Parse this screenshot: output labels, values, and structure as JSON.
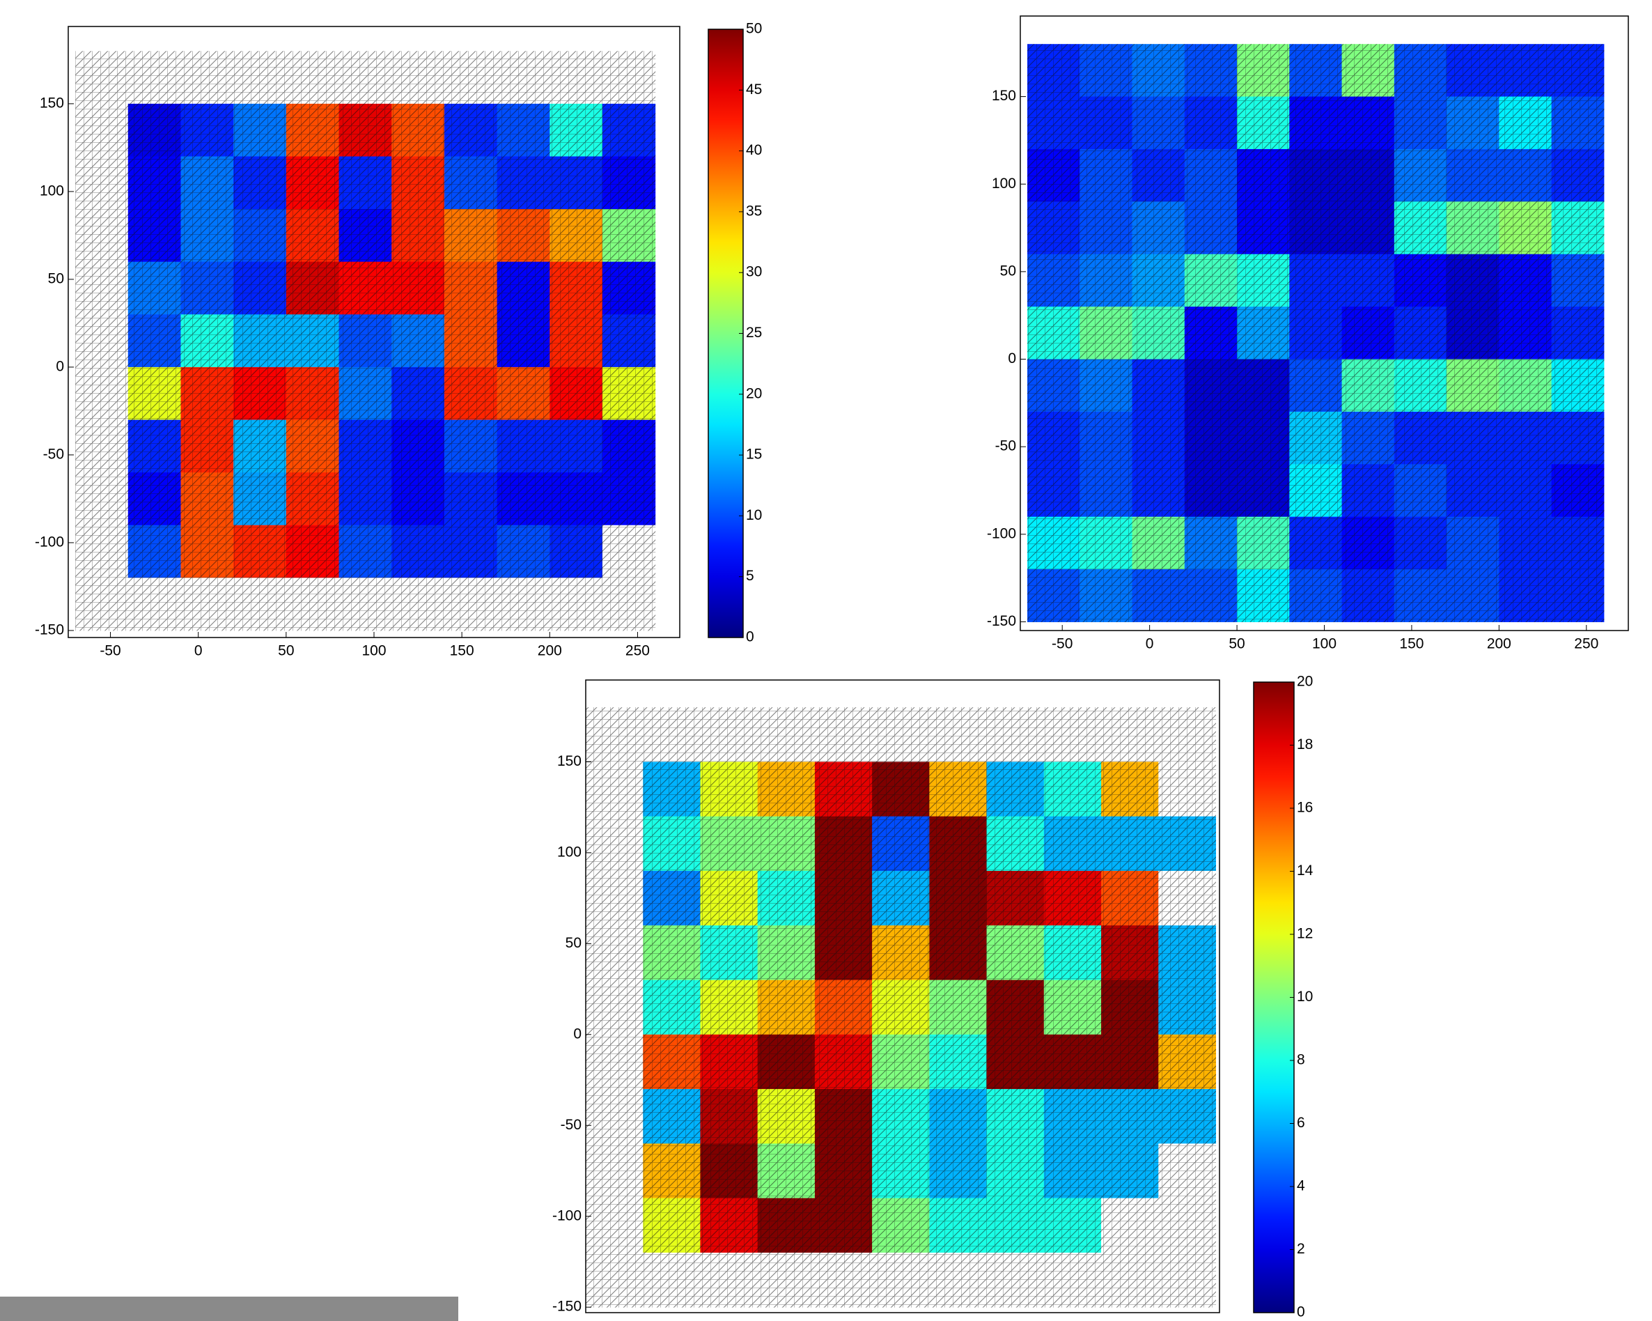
{
  "chart_data": [
    {
      "type": "heatmap",
      "x": [
        -55,
        -25,
        5,
        35,
        65,
        95,
        125,
        155,
        185,
        215,
        245
      ],
      "y": [
        165,
        135,
        105,
        75,
        45,
        15,
        -15,
        -45,
        -75,
        -105,
        -135
      ],
      "values": [
        [
          null,
          null,
          null,
          null,
          null,
          null,
          null,
          null,
          null,
          null,
          null
        ],
        [
          null,
          5,
          8,
          12,
          40,
          45,
          40,
          8,
          10,
          20,
          8
        ],
        [
          null,
          6,
          12,
          8,
          44,
          8,
          42,
          10,
          8,
          8,
          6
        ],
        [
          null,
          6,
          12,
          10,
          42,
          6,
          42,
          38,
          40,
          36,
          25
        ],
        [
          null,
          12,
          10,
          8,
          46,
          44,
          44,
          40,
          6,
          42,
          6
        ],
        [
          null,
          10,
          20,
          15,
          15,
          10,
          12,
          40,
          6,
          42,
          8
        ],
        [
          null,
          30,
          42,
          44,
          42,
          12,
          8,
          42,
          40,
          44,
          30
        ],
        [
          null,
          8,
          42,
          15,
          40,
          8,
          6,
          10,
          8,
          8,
          6
        ],
        [
          null,
          6,
          40,
          14,
          42,
          8,
          6,
          8,
          6,
          6,
          6
        ],
        [
          null,
          10,
          40,
          42,
          44,
          10,
          8,
          8,
          10,
          8,
          null
        ],
        [
          null,
          null,
          null,
          null,
          null,
          null,
          null,
          null,
          null,
          null,
          null
        ]
      ],
      "xlim": [
        -74,
        274
      ],
      "ylim": [
        -154,
        194
      ],
      "xticks": [
        -50,
        0,
        50,
        100,
        150,
        200,
        250
      ],
      "yticks": [
        -150,
        -100,
        -50,
        0,
        50,
        100,
        150
      ],
      "clim": [
        0,
        50
      ],
      "colorbar_ticks": [
        0,
        5,
        10,
        15,
        20,
        25,
        30,
        35,
        40,
        45,
        50
      ]
    },
    {
      "type": "heatmap",
      "x": [
        -55,
        -25,
        5,
        35,
        65,
        95,
        125,
        155,
        185,
        215,
        245
      ],
      "y": [
        165,
        135,
        105,
        75,
        45,
        15,
        -15,
        -45,
        -75,
        -105,
        -135
      ],
      "values": [
        [
          8,
          10,
          12,
          10,
          25,
          10,
          25,
          10,
          8,
          8,
          8
        ],
        [
          8,
          8,
          10,
          8,
          20,
          6,
          6,
          10,
          12,
          18,
          10
        ],
        [
          6,
          10,
          8,
          10,
          6,
          4,
          4,
          12,
          10,
          10,
          8
        ],
        [
          8,
          10,
          12,
          10,
          6,
          4,
          4,
          20,
          24,
          26,
          20
        ],
        [
          10,
          12,
          14,
          22,
          20,
          8,
          8,
          6,
          4,
          6,
          10
        ],
        [
          20,
          24,
          22,
          6,
          14,
          8,
          6,
          8,
          4,
          6,
          8
        ],
        [
          10,
          12,
          8,
          4,
          4,
          10,
          22,
          20,
          25,
          24,
          18
        ],
        [
          8,
          10,
          8,
          4,
          4,
          16,
          10,
          8,
          8,
          8,
          8
        ],
        [
          8,
          10,
          8,
          4,
          4,
          18,
          8,
          10,
          8,
          8,
          6
        ],
        [
          18,
          20,
          24,
          12,
          22,
          8,
          6,
          8,
          10,
          8,
          8
        ],
        [
          10,
          12,
          10,
          10,
          18,
          10,
          8,
          10,
          10,
          8,
          8
        ]
      ],
      "xlim": [
        -74,
        274
      ],
      "ylim": [
        -155,
        196
      ],
      "xticks": [
        -50,
        0,
        50,
        100,
        150,
        200,
        250
      ],
      "yticks": [
        -150,
        -100,
        -50,
        0,
        50,
        100,
        150
      ],
      "clim": [
        0,
        50
      ]
    },
    {
      "type": "heatmap",
      "x": [
        -55,
        -25,
        5,
        35,
        65,
        95,
        125,
        155,
        185,
        215,
        245
      ],
      "y": [
        165,
        135,
        105,
        75,
        45,
        15,
        -15,
        -45,
        -75,
        -105,
        -135
      ],
      "values": [
        [
          null,
          null,
          null,
          null,
          null,
          null,
          null,
          null,
          null,
          null,
          null
        ],
        [
          null,
          6,
          12,
          14,
          18,
          20,
          14,
          6,
          8,
          14,
          null
        ],
        [
          null,
          8,
          10,
          10,
          20,
          4,
          20,
          8,
          6,
          6,
          6
        ],
        [
          null,
          5,
          12,
          8,
          20,
          6,
          20,
          19,
          18,
          16,
          null
        ],
        [
          null,
          10,
          8,
          10,
          20,
          14,
          20,
          10,
          8,
          19,
          6
        ],
        [
          null,
          8,
          12,
          14,
          16,
          12,
          10,
          20,
          10,
          20,
          6
        ],
        [
          null,
          16,
          18,
          20,
          18,
          10,
          8,
          20,
          20,
          20,
          14
        ],
        [
          null,
          6,
          19,
          12,
          20,
          8,
          6,
          8,
          6,
          6,
          6
        ],
        [
          null,
          14,
          20,
          10,
          20,
          8,
          6,
          8,
          6,
          6,
          null
        ],
        [
          null,
          12,
          18,
          20,
          20,
          10,
          8,
          8,
          8,
          null,
          null
        ],
        [
          null,
          null,
          null,
          null,
          null,
          null,
          null,
          null,
          null,
          null,
          null
        ]
      ],
      "xlim": [
        -70,
        262
      ],
      "ylim": [
        -153,
        195
      ],
      "yticks": [
        -150,
        -100,
        -50,
        0,
        50,
        100,
        150
      ],
      "clim": [
        0,
        20
      ],
      "colorbar_ticks": [
        0,
        2,
        4,
        6,
        8,
        10,
        12,
        14,
        16,
        18,
        20
      ]
    }
  ]
}
